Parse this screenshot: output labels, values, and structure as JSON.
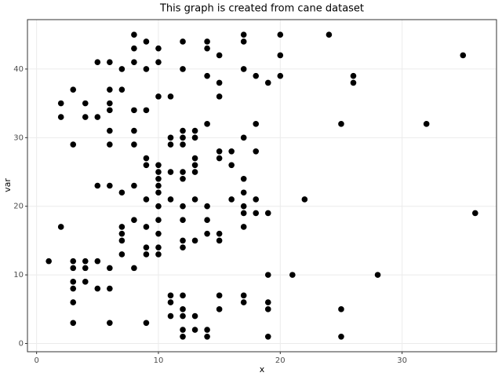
{
  "chart_data": {
    "type": "scatter",
    "title": "This graph is created from cane dataset",
    "x_label": "x",
    "y_label": "var",
    "color": "#000000",
    "grid": true,
    "xlim": [
      -0.75,
      37.75
    ],
    "ylim": [
      -1.2,
      47.2
    ],
    "xticks": [
      0,
      10,
      20,
      30
    ],
    "yticks": [
      0,
      10,
      20,
      30,
      40
    ],
    "x": [
      1,
      2,
      2,
      2,
      3,
      3,
      3,
      3,
      3,
      3,
      3,
      3,
      4,
      4,
      4,
      4,
      4,
      5,
      5,
      5,
      5,
      5,
      6,
      6,
      6,
      6,
      6,
      6,
      6,
      6,
      6,
      6,
      7,
      7,
      7,
      7,
      7,
      7,
      7,
      8,
      8,
      8,
      8,
      8,
      8,
      8,
      8,
      8,
      9,
      9,
      9,
      9,
      9,
      9,
      9,
      9,
      9,
      9,
      10,
      10,
      10,
      10,
      10,
      10,
      10,
      10,
      10,
      10,
      10,
      10,
      10,
      11,
      11,
      11,
      11,
      11,
      11,
      11,
      11,
      12,
      12,
      12,
      12,
      12,
      12,
      12,
      12,
      12,
      12,
      12,
      12,
      12,
      12,
      12,
      12,
      13,
      13,
      13,
      13,
      13,
      13,
      13,
      13,
      13,
      14,
      14,
      14,
      14,
      14,
      14,
      14,
      14,
      14,
      15,
      15,
      15,
      15,
      15,
      15,
      15,
      15,
      15,
      16,
      16,
      16,
      17,
      17,
      17,
      17,
      17,
      17,
      17,
      17,
      17,
      17,
      17,
      18,
      18,
      18,
      18,
      18,
      19,
      19,
      19,
      19,
      19,
      19,
      20,
      20,
      20,
      21,
      22,
      24,
      25,
      25,
      25,
      26,
      26,
      28,
      32,
      35,
      36
    ],
    "values": [
      12,
      35,
      33,
      17,
      37,
      29,
      12,
      11,
      9,
      8,
      6,
      3,
      35,
      33,
      12,
      11,
      9,
      41,
      33,
      23,
      12,
      8,
      41,
      37,
      35,
      34,
      31,
      29,
      23,
      11,
      8,
      3,
      40,
      37,
      22,
      17,
      16,
      15,
      13,
      45,
      43,
      41,
      34,
      31,
      29,
      23,
      18,
      11,
      44,
      40,
      34,
      27,
      26,
      21,
      17,
      14,
      13,
      3,
      43,
      41,
      36,
      26,
      25,
      24,
      23,
      22,
      20,
      18,
      16,
      14,
      13,
      36,
      30,
      29,
      25,
      21,
      7,
      6,
      4,
      44,
      40,
      31,
      30,
      29,
      25,
      24,
      20,
      18,
      15,
      14,
      7,
      5,
      4,
      2,
      1,
      31,
      30,
      27,
      26,
      25,
      21,
      15,
      4,
      2,
      44,
      43,
      39,
      32,
      20,
      18,
      16,
      2,
      1,
      42,
      38,
      36,
      28,
      27,
      16,
      15,
      7,
      5,
      28,
      26,
      21,
      45,
      44,
      40,
      30,
      24,
      22,
      20,
      19,
      17,
      7,
      6,
      39,
      32,
      28,
      21,
      19,
      38,
      19,
      10,
      6,
      5,
      1,
      45,
      42,
      39,
      10,
      21,
      45,
      32,
      5,
      1,
      39,
      38,
      10,
      32,
      42,
      19
    ]
  }
}
